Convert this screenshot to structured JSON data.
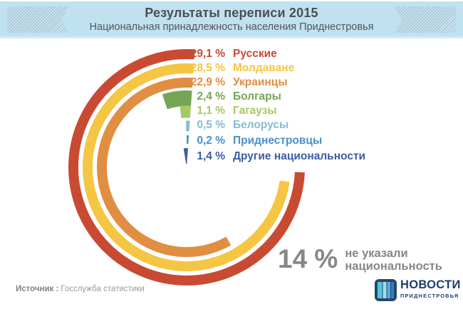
{
  "header": {
    "title": "Результаты переписи 2015",
    "subtitle": "Национальная принадлежность населения Приднестровья"
  },
  "chart_data": {
    "type": "radial-bar",
    "title": "Результаты переписи 2015",
    "subtitle": "Национальная принадлежность населения Приднестровья",
    "unit": "%",
    "categories": [
      "Русские",
      "Молдаване",
      "Украинцы",
      "Болгары",
      "Гагаузы",
      "Белорусы",
      "Приднестровцы",
      "Другие национальности"
    ],
    "values": [
      29.1,
      28.5,
      22.9,
      2.4,
      1.1,
      0.5,
      0.2,
      1.4
    ],
    "series": [
      {
        "label": "Русские",
        "value": 29.1,
        "value_text": "29,1 %",
        "color": "#c94a33"
      },
      {
        "label": "Молдаване",
        "value": 28.5,
        "value_text": "28,5 %",
        "color": "#f5c544"
      },
      {
        "label": "Украинцы",
        "value": 22.9,
        "value_text": "22,9 %",
        "color": "#e18e43"
      },
      {
        "label": "Болгары",
        "value": 2.4,
        "value_text": "2,4 %",
        "color": "#76a556"
      },
      {
        "label": "Гагаузы",
        "value": 1.1,
        "value_text": "1,1 %",
        "color": "#a5ca63"
      },
      {
        "label": "Белорусы",
        "value": 0.5,
        "value_text": "0,5 %",
        "color": "#85becf"
      },
      {
        "label": "Приднестровцы",
        "value": 0.2,
        "value_text": "0,2 %",
        "color": "#4a90cc"
      },
      {
        "label": "Другие национальности",
        "value": 1.4,
        "value_text": "1,4 %",
        "color": "#3d5ca6"
      }
    ],
    "not_stated": {
      "value": 14,
      "value_text": "14 %",
      "line1": "не указали",
      "line2": "национальность"
    },
    "layout": {
      "direction": "counterclockwise",
      "end_angle_deg": 4,
      "deg_per_percent": 9.33,
      "min_sweep_deg": 4,
      "legend_position": "top-right",
      "grid": false
    }
  },
  "source": {
    "label": "Источник :",
    "text": "Госслужба статистики"
  },
  "logo": {
    "title": "НОВОСТИ",
    "subtitle": "ПРИДНЕСТРОВЬЯ"
  }
}
